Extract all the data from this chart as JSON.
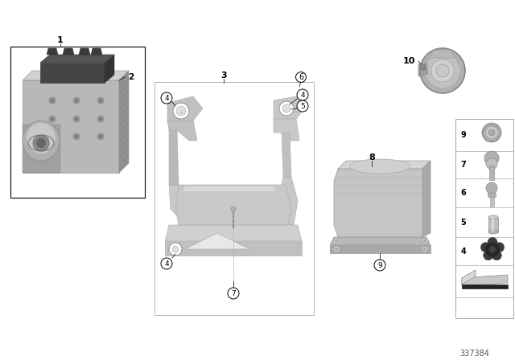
{
  "bg_color": "#ffffff",
  "part_number": "337384",
  "fig_width": 6.4,
  "fig_height": 4.48,
  "dpi": 100,
  "colors": {
    "light_gray": "#c8c8c8",
    "mid_gray": "#a0a0a0",
    "dark_gray": "#707070",
    "darker_gray": "#505050",
    "black": "#222222",
    "white": "#ffffff",
    "very_light": "#e0e0e0",
    "shadow": "#888888",
    "box_edge": "#999999"
  }
}
